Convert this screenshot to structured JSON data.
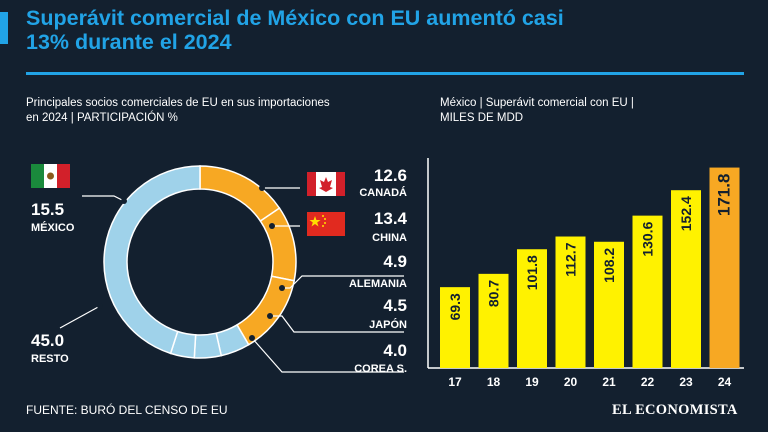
{
  "header": {
    "title_line1": "Superávit comercial de México con EU aumentó casi",
    "title_line2": "13% durante el 2024"
  },
  "left_panel": {
    "subtitle_line1": "Principales socios comerciales de EU en sus importaciones",
    "subtitle_line2": "en 2024 | PARTICIPACIÓN %"
  },
  "right_panel": {
    "subtitle_line1": "México | Superávit comercial con EU |",
    "subtitle_line2": "MILES DE MDD"
  },
  "footer": {
    "source": "FUENTE: BURÓ DEL CENSO DE EU",
    "brand": "EL ECONOMISTA"
  },
  "colors": {
    "background": "#13202f",
    "accent": "#21a3e6",
    "donut_orange": "#f7a823",
    "donut_blue": "#9fd2ea",
    "bar_yellow": "#fff200",
    "bar_highlight": "#f7a823"
  },
  "chart_data": [
    {
      "type": "pie",
      "title": "Principales socios comerciales de EU en sus importaciones en 2024 | PARTICIPACIÓN %",
      "slices": [
        {
          "label": "MÉXICO",
          "value": 15.5,
          "value_text": "15.5"
        },
        {
          "label": "CANADÁ",
          "value": 12.6,
          "value_text": "12.6"
        },
        {
          "label": "CHINA",
          "value": 13.4,
          "value_text": "13.4"
        },
        {
          "label": "ALEMANIA",
          "value": 4.9,
          "value_text": "4.9"
        },
        {
          "label": "JAPÓN",
          "value": 4.5,
          "value_text": "4.5"
        },
        {
          "label": "COREA S.",
          "value": 4.0,
          "value_text": "4.0"
        },
        {
          "label": "RESTO",
          "value": 45.0,
          "value_text": "45.0"
        }
      ]
    },
    {
      "type": "bar",
      "title": "México | Superávit comercial con EU | MILES DE MDD",
      "categories": [
        "17",
        "18",
        "19",
        "20",
        "21",
        "22",
        "23",
        "24"
      ],
      "values": [
        69.3,
        80.7,
        101.8,
        112.7,
        108.2,
        130.6,
        152.4,
        171.8
      ],
      "value_labels": [
        "69.3",
        "80.7",
        "101.8",
        "112.7",
        "108.2",
        "130.6",
        "152.4",
        "171.8"
      ],
      "ylim": [
        0,
        180
      ]
    }
  ]
}
